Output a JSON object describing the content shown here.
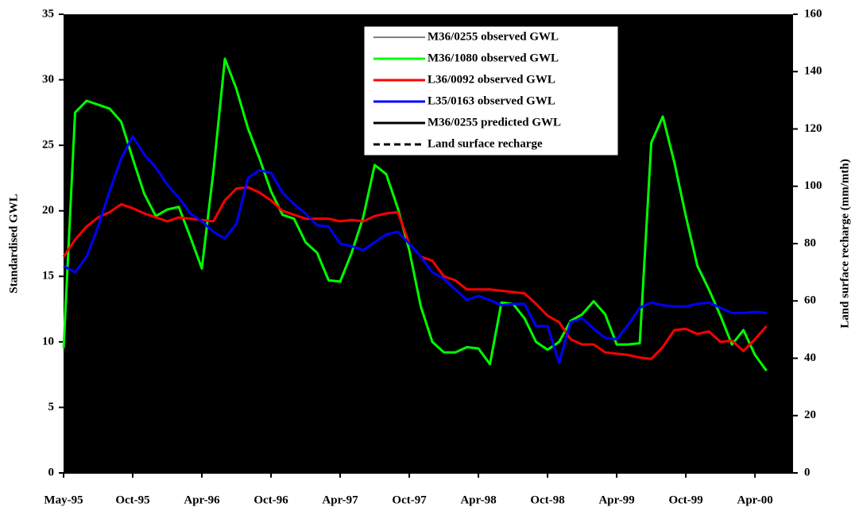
{
  "chart_data": {
    "type": "line",
    "y_label": "Standardised GWL",
    "y2_label": "Land surface recharge (mm/mth)",
    "xlim": [
      0,
      63.3
    ],
    "xticks": [
      {
        "value": 0,
        "label": "May-95"
      },
      {
        "value": 6,
        "label": "Oct-95"
      },
      {
        "value": 12,
        "label": "Apr-96"
      },
      {
        "value": 18,
        "label": "Oct-96"
      },
      {
        "value": 24,
        "label": "Apr-97"
      },
      {
        "value": 30,
        "label": "Oct-97"
      },
      {
        "value": 36,
        "label": "Apr-98"
      },
      {
        "value": 42,
        "label": "Oct-98"
      },
      {
        "value": 48,
        "label": "Apr-99"
      },
      {
        "value": 54,
        "label": "Oct-99"
      },
      {
        "value": 60,
        "label": "Apr-00"
      }
    ],
    "ylim": [
      0,
      35
    ],
    "yticks": [
      0,
      5,
      10,
      15,
      20,
      25,
      30,
      35
    ],
    "y2lim": [
      0,
      160
    ],
    "y2ticks": [
      0,
      20,
      40,
      60,
      80,
      100,
      120,
      140,
      160
    ],
    "background": "#000000",
    "x": [
      0,
      1,
      2,
      3,
      4,
      5,
      6,
      7,
      8,
      9,
      10,
      11,
      12,
      13,
      14,
      15,
      16,
      17,
      18,
      19,
      20,
      21,
      22,
      23,
      24,
      25,
      26,
      27,
      28,
      29,
      30,
      31,
      32,
      33,
      34,
      35,
      36,
      37,
      38,
      39,
      40,
      41,
      42,
      43,
      44,
      45,
      46,
      47,
      48,
      49,
      50,
      51,
      52,
      53,
      54,
      55,
      56,
      57,
      58,
      59,
      60,
      61
    ],
    "series": [
      {
        "name": "M36/0255 observed GWL",
        "color": "#000000",
        "width": 1
      },
      {
        "name": "M36/1080 observed GWL",
        "color": "#00ff00",
        "width": 3,
        "values": [
          9.5,
          27.5,
          28.4,
          28.1,
          27.8,
          26.8,
          24,
          21.3,
          19.6,
          20.1,
          20.3,
          18,
          15.6,
          23,
          31.6,
          29.3,
          26.3,
          24,
          21.5,
          19.7,
          19.4,
          17.6,
          16.8,
          14.7,
          14.6,
          16.8,
          19.5,
          23.5,
          22.8,
          20.2,
          17,
          12.7,
          10,
          9.2,
          9.2,
          9.6,
          9.5,
          8.3,
          13,
          12.9,
          11.8,
          10,
          9.4,
          10,
          11.6,
          12.1,
          13.1,
          12.1,
          9.8,
          9.8,
          9.9,
          25.2,
          27.2,
          23.7,
          19.6,
          15.8,
          14,
          12,
          9.8,
          10.9,
          9,
          7.8
        ]
      },
      {
        "name": "L36/0092 observed GWL",
        "color": "#ff0000",
        "width": 3,
        "values": [
          16.5,
          17.8,
          18.8,
          19.5,
          19.9,
          20.5,
          20.2,
          19.8,
          19.5,
          19.2,
          19.5,
          19.4,
          19.3,
          19.2,
          20.8,
          21.7,
          21.8,
          21.4,
          20.8,
          20,
          19.7,
          19.4,
          19.4,
          19.4,
          19.2,
          19.3,
          19.2,
          19.6,
          19.8,
          19.9,
          17.5,
          16.5,
          16.2,
          15,
          14.7,
          14,
          14,
          14,
          13.9,
          13.8,
          13.7,
          12.9,
          12,
          11.5,
          10.2,
          9.8,
          9.8,
          9.2,
          9.1,
          9,
          8.8,
          8.7,
          9.6,
          10.9,
          11,
          10.6,
          10.8,
          10,
          10.1,
          9.3,
          10.2,
          11.2
        ]
      },
      {
        "name": "L35/0163 observed GWL",
        "color": "#0000ff",
        "width": 3,
        "values": [
          15.8,
          15.3,
          16.5,
          18.8,
          21.5,
          24,
          25.7,
          24.3,
          23.3,
          22,
          21,
          19.8,
          19.2,
          18.4,
          17.9,
          19,
          22.5,
          23.1,
          22.9,
          21.4,
          20.5,
          19.8,
          18.9,
          18.8,
          17.5,
          17.3,
          17,
          17.6,
          18.2,
          18.4,
          17.5,
          16.5,
          15.3,
          14.8,
          14,
          13.2,
          13.5,
          13.2,
          12.8,
          12.9,
          12.9,
          11.2,
          11.2,
          8.4,
          11.5,
          11.8,
          11,
          10.3,
          10.2,
          11.3,
          12.6,
          13,
          12.8,
          12.7,
          12.7,
          12.9,
          13,
          12.6,
          12.2,
          12.2,
          12.3,
          12.2
        ]
      },
      {
        "name": "M36/0255 predicted GWL",
        "color": "#000000",
        "width": 3
      },
      {
        "name": "Land surface recharge",
        "color": "#000000",
        "width": 3,
        "dash": true,
        "axis": "y2"
      }
    ]
  }
}
